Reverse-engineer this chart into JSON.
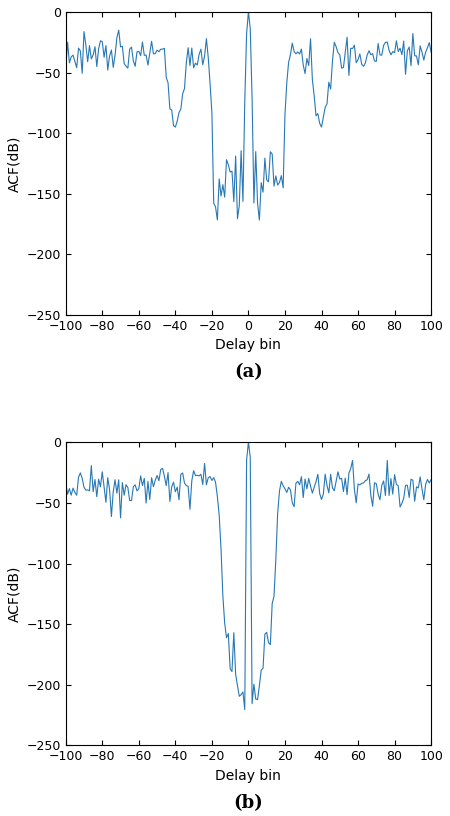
{
  "line_color": "#2878b5",
  "line_width": 0.8,
  "xlabel": "Delay bin",
  "ylabel": "ACF(dB)",
  "xlim": [
    -100,
    100
  ],
  "ylim": [
    -250,
    0
  ],
  "yticks": [
    0,
    -50,
    -100,
    -150,
    -200,
    -250
  ],
  "xticks": [
    -100,
    -80,
    -60,
    -40,
    -20,
    0,
    20,
    40,
    60,
    80,
    100
  ],
  "label_a": "(a)",
  "label_b": "(b)",
  "background_color": "#ffffff",
  "tick_fontsize": 9,
  "label_fontsize": 10,
  "caption_fontsize": 13
}
